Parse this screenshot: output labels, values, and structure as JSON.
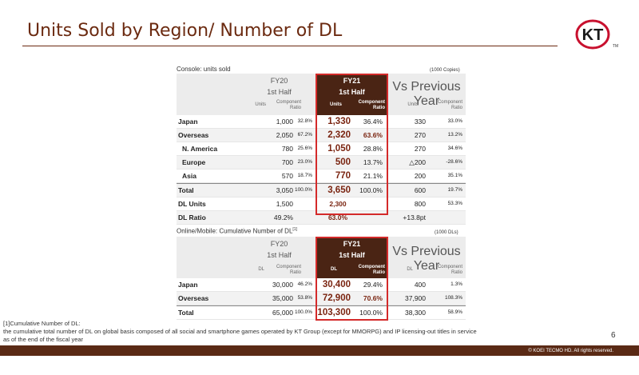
{
  "page": {
    "title": "Units Sold by Region/ Number of DL",
    "page_number": "6",
    "copyright": "© KOEI TECMO HD. All rights reserved.",
    "logo_text": "KT",
    "logo_tm": "TM"
  },
  "console": {
    "label": "Console: units sold",
    "unit": "(1000 Copies)",
    "fy20_year": "FY20",
    "fy20_half": "1st Half",
    "fy21_year": "FY21",
    "fy21_half": "1st Half",
    "vs_label": "Vs Previous Year",
    "sub_units": "Units",
    "sub_ratio_1": "Component",
    "sub_ratio_2": "Ratio",
    "rows": [
      {
        "label": "Japan",
        "fy20": "1,000",
        "fy20r": "32.8%",
        "fy21": "1,330",
        "fy21r": "36.4%",
        "vs": "330",
        "vsr": "33.0%"
      },
      {
        "label": "Overseas",
        "fy20": "2,050",
        "fy20r": "67.2%",
        "fy21": "2,320",
        "fy21r": "63.6%",
        "vs": "270",
        "vsr": "13.2%"
      },
      {
        "label": "N. America",
        "fy20": "780",
        "fy20r": "25.6%",
        "fy21": "1,050",
        "fy21r": "28.8%",
        "vs": "270",
        "vsr": "34.6%"
      },
      {
        "label": "Europe",
        "fy20": "700",
        "fy20r": "23.0%",
        "fy21": "500",
        "fy21r": "13.7%",
        "vs": "△200",
        "vsr": "-28.6%"
      },
      {
        "label": "Asia",
        "fy20": "570",
        "fy20r": "18.7%",
        "fy21": "770",
        "fy21r": "21.1%",
        "vs": "200",
        "vsr": "35.1%"
      },
      {
        "label": "Total",
        "fy20": "3,050",
        "fy20r": "100.0%",
        "fy21": "3,650",
        "fy21r": "100.0%",
        "vs": "600",
        "vsr": "19.7%"
      },
      {
        "label": "DL Units",
        "fy20": "1,500",
        "fy20r": "",
        "fy21": "2,300",
        "fy21r": "",
        "vs": "800",
        "vsr": "53.3%"
      },
      {
        "label": "DL Ratio",
        "fy20": "49.2%",
        "fy20r": "",
        "fy21": "63.0%",
        "fy21r": "",
        "vs": "+13.8pt",
        "vsr": ""
      }
    ]
  },
  "online": {
    "label": "Online/Mobile: Cumulative Number of DL",
    "label_sup": "[1]",
    "unit": "(1000 DLs)",
    "fy20_year": "FY20",
    "fy20_half": "1st Half",
    "fy21_year": "FY21",
    "fy21_half": "1st Half",
    "vs_label": "Vs Previous Year",
    "sub_units": "DL",
    "sub_ratio_1": "Component",
    "sub_ratio_2": "Ratio",
    "rows": [
      {
        "label": "Japan",
        "fy20": "30,000",
        "fy20r": "46.2%",
        "fy21": "30,400",
        "fy21r": "29.4%",
        "vs": "400",
        "vsr": "1.3%"
      },
      {
        "label": "Overseas",
        "fy20": "35,000",
        "fy20r": "53.8%",
        "fy21": "72,900",
        "fy21r": "70.6%",
        "vs": "37,900",
        "vsr": "108.3%"
      },
      {
        "label": "Total",
        "fy20": "65,000",
        "fy20r": "100.0%",
        "fy21": "103,300",
        "fy21r": "100.0%",
        "vs": "38,300",
        "vsr": "58.9%"
      }
    ]
  },
  "footnote": {
    "line1": "[1]Cumulative Number of DL:",
    "line2": "the cumulative total number of DL on global basis composed of all social and smartphone games operated by KT Group (except for MMORPG) and IP licensing-out titles in service",
    "line3": "as of the end of the fiscal year"
  },
  "colors": {
    "brand_brown": "#5a2a15",
    "title_brown": "#6b2a10",
    "highlight_red": "#d42a2a",
    "fy21_header": "#4a2414"
  }
}
